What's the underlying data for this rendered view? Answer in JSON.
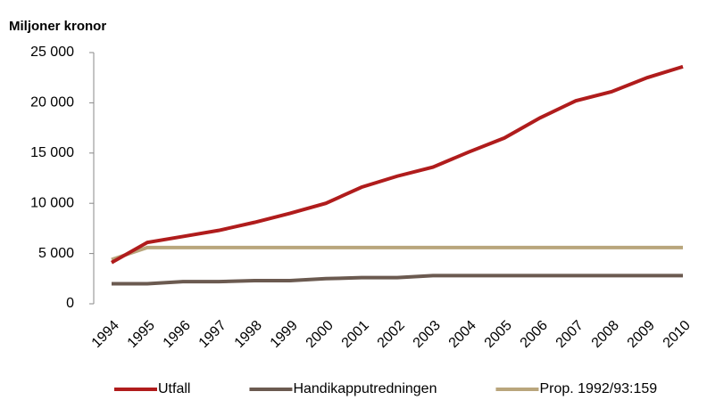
{
  "chart_data": {
    "type": "line",
    "title": "Miljoner kronor",
    "categories": [
      "1994",
      "1995",
      "1996",
      "1997",
      "1998",
      "1999",
      "2000",
      "2001",
      "2002",
      "2003",
      "2004",
      "2005",
      "2006",
      "2007",
      "2008",
      "2009",
      "2010"
    ],
    "series": [
      {
        "name": "Utfall",
        "color": "#b01c1c",
        "values": [
          4100,
          6100,
          6700,
          7300,
          8100,
          9000,
          10000,
          11600,
          12700,
          13600,
          15100,
          16500,
          18500,
          20200,
          21100,
          22500,
          23600
        ]
      },
      {
        "name": "Handikapputredningen",
        "color": "#6b5a50",
        "values": [
          2000,
          2000,
          2200,
          2200,
          2300,
          2300,
          2500,
          2600,
          2600,
          2800,
          2800,
          2800,
          2800,
          2800,
          2800,
          2800,
          2800
        ]
      },
      {
        "name": "Prop. 1992/93:159",
        "color": "#b9a67c",
        "values": [
          4400,
          5600,
          5600,
          5600,
          5600,
          5600,
          5600,
          5600,
          5600,
          5600,
          5600,
          5600,
          5600,
          5600,
          5600,
          5600,
          5600
        ]
      }
    ],
    "ylim": [
      0,
      25000
    ],
    "yticks": [
      0,
      {
        "value": 5000,
        "label": "5 000"
      },
      {
        "value": 10000,
        "label": "10 000"
      },
      {
        "value": 15000,
        "label": "15 000"
      },
      {
        "value": 20000,
        "label": "20 000"
      },
      {
        "value": 25000,
        "label": "25 000"
      }
    ],
    "grid": false,
    "legend": "bottom"
  }
}
